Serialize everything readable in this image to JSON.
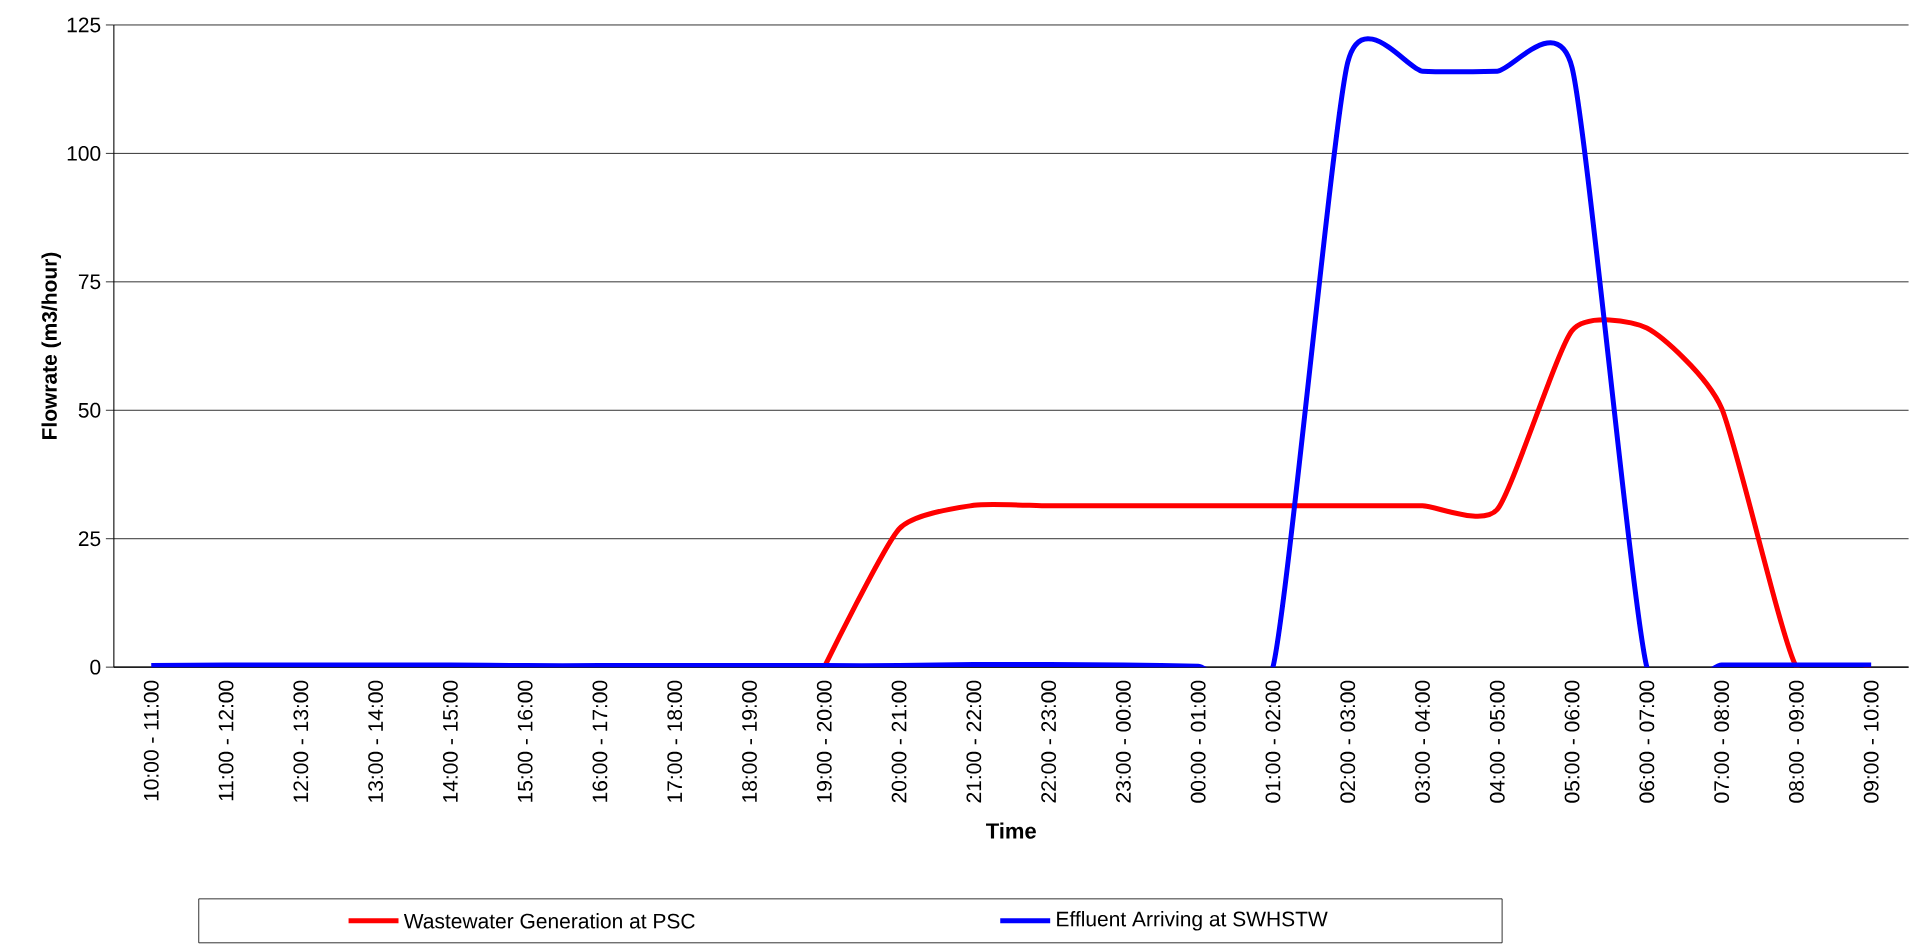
{
  "chart_data": {
    "type": "line",
    "xlabel": "Time",
    "ylabel": "Flowrate (m3/hour)",
    "categories": [
      "10:00 - 11:00",
      "11:00 - 12:00",
      "12:00 - 13:00",
      "13:00 - 14:00",
      "14:00 - 15:00",
      "15:00 - 16:00",
      "16:00 - 17:00",
      "17:00 - 18:00",
      "18:00 - 19:00",
      "19:00 - 20:00",
      "20:00 - 21:00",
      "21:00 - 22:00",
      "22:00 - 23:00",
      "23:00 - 00:00",
      "00:00 - 01:00",
      "01:00 - 02:00",
      "02:00 - 03:00",
      "03:00 - 04:00",
      "04:00 - 05:00",
      "05:00 - 06:00",
      "06:00 - 07:00",
      "07:00 - 08:00",
      "08:00 - 09:00",
      "09:00 - 10:00"
    ],
    "series": [
      {
        "name": "Wastewater Generation at PSC",
        "color": "#ff0000",
        "values": [
          null,
          null,
          null,
          null,
          null,
          null,
          null,
          null,
          null,
          0,
          26.9,
          31.5,
          31.4,
          31.4,
          31.4,
          31.4,
          31.4,
          31.4,
          30.7,
          65.5,
          66,
          50.4,
          0,
          0
        ]
      },
      {
        "name": "Effluent Arriving at SWHSTW",
        "color": "#0000ff",
        "values": [
          0.3,
          0.4,
          0.4,
          0.4,
          0.4,
          0.3,
          0.3,
          0.3,
          0.3,
          0.3,
          0.3,
          0.5,
          0.5,
          0.4,
          0.2,
          0,
          117.7,
          116,
          116,
          116.7,
          0,
          0.4,
          0.4,
          0.4
        ]
      }
    ],
    "ylim": [
      0,
      125
    ],
    "yticks": [
      0,
      25,
      50,
      75,
      100,
      125
    ],
    "grid": "y",
    "legend": "bottom"
  }
}
